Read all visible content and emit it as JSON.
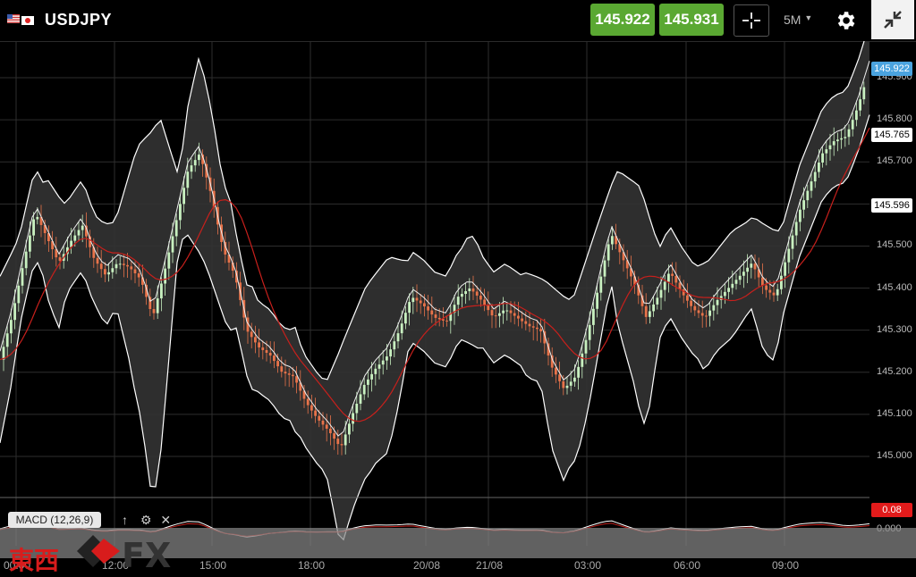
{
  "header": {
    "symbol": "USDJPY",
    "bid": "145.922",
    "ask": "145.931",
    "timeframe": "5M",
    "colors": {
      "price_button": "#5aa832"
    }
  },
  "price_axis": {
    "labels": [
      "145.900",
      "145.800",
      "145.700",
      "145.600",
      "145.500",
      "145.400",
      "145.300",
      "145.200",
      "145.100",
      "145.000"
    ],
    "tags": [
      {
        "value": "145.922",
        "color": "#4aa3df"
      },
      {
        "value": "145.765",
        "color": "#ffffff"
      },
      {
        "value": "145.596",
        "color": "#ffffff"
      }
    ]
  },
  "time_axis": {
    "labels": [
      "00:00",
      "12:00",
      "15:00",
      "18:00",
      "20/08",
      "21/08",
      "03:00",
      "06:00",
      "09:00"
    ]
  },
  "indicator": {
    "name": "MACD (12,26,9)",
    "value": "0.08",
    "zero": "0.000",
    "value_color": "#e21b1b"
  },
  "watermark": {
    "chinese": "東西",
    "fx": "FX"
  },
  "chart_data": {
    "type": "candlestick",
    "symbol": "USDJPY",
    "interval": "5M",
    "ylim": [
      144.93,
      145.96
    ],
    "overlays": [
      "Bollinger Bands",
      "Moving Average (red)",
      "Bollinger middle band (white)"
    ],
    "close_path": [
      145.23,
      145.33,
      145.46,
      145.58,
      145.52,
      145.46,
      145.51,
      145.55,
      145.47,
      145.43,
      145.46,
      145.45,
      145.42,
      145.33,
      145.44,
      145.56,
      145.68,
      145.72,
      145.62,
      145.49,
      145.43,
      145.3,
      145.26,
      145.24,
      145.2,
      145.19,
      145.13,
      145.09,
      145.06,
      145.02,
      145.1,
      145.17,
      145.21,
      145.24,
      145.3,
      145.38,
      145.36,
      145.33,
      145.32,
      145.38,
      145.4,
      145.37,
      145.33,
      145.35,
      145.33,
      145.31,
      145.3,
      145.21,
      145.16,
      145.19,
      145.29,
      145.41,
      145.53,
      145.47,
      145.41,
      145.33,
      145.38,
      145.44,
      145.39,
      145.35,
      145.33,
      145.37,
      145.4,
      145.43,
      145.46,
      145.4,
      145.38,
      145.48,
      145.58,
      145.65,
      145.72,
      145.75,
      145.76,
      145.83,
      145.92
    ],
    "bb_upper_path": [
      145.4,
      145.5,
      145.63,
      145.55,
      145.53,
      145.51,
      145.72,
      145.8,
      145.58,
      145.48,
      145.33,
      145.37,
      145.23,
      145.08,
      145.1,
      145.25,
      145.38,
      145.45,
      145.42,
      145.37,
      145.32,
      145.29,
      145.35,
      145.4,
      145.38,
      145.34,
      145.5,
      145.65,
      145.62,
      145.42,
      145.4,
      145.43,
      145.5,
      145.53,
      145.5,
      145.55,
      145.72,
      145.82,
      145.87
    ]
  }
}
